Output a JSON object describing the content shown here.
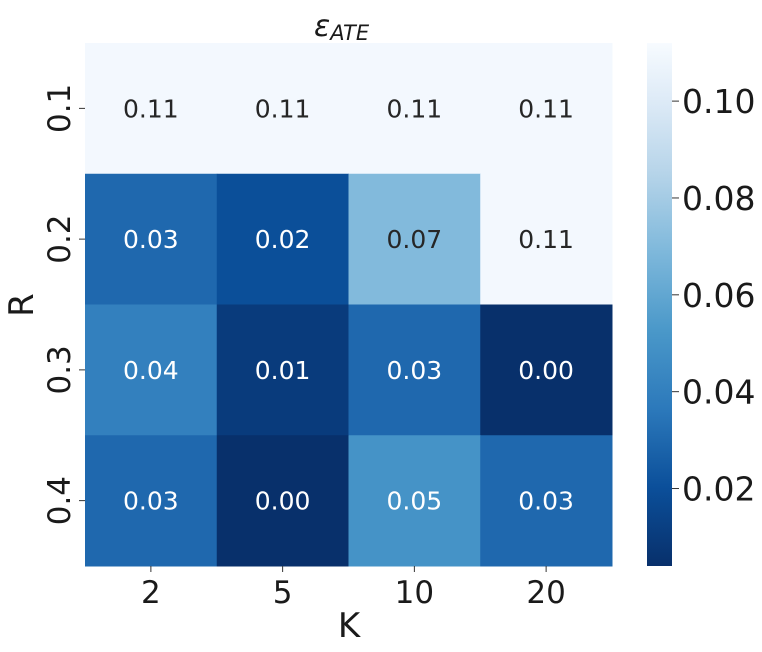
{
  "chart_data": {
    "type": "heatmap",
    "title": "ε",
    "title_subscript": "ATE",
    "xlabel": "K",
    "ylabel": "R",
    "x_categories": [
      "2",
      "5",
      "10",
      "20"
    ],
    "y_categories": [
      "0.1",
      "0.2",
      "0.3",
      "0.4"
    ],
    "values": [
      [
        0.11,
        0.11,
        0.11,
        0.11
      ],
      [
        0.03,
        0.02,
        0.07,
        0.11
      ],
      [
        0.04,
        0.01,
        0.03,
        0.0
      ],
      [
        0.03,
        0.0,
        0.05,
        0.03
      ]
    ],
    "annotations": [
      [
        "0.11",
        "0.11",
        "0.11",
        "0.11"
      ],
      [
        "0.03",
        "0.02",
        "0.07",
        "0.11"
      ],
      [
        "0.04",
        "0.01",
        "0.03",
        "0.00"
      ],
      [
        "0.03",
        "0.00",
        "0.05",
        "0.03"
      ]
    ],
    "colormap": "Blues_r",
    "colorbar": {
      "range": [
        0.004,
        0.112
      ],
      "ticks": [
        0.02,
        0.04,
        0.06,
        0.08,
        0.1
      ],
      "tick_labels": [
        "0.02",
        "0.04",
        "0.06",
        "0.08",
        "0.10"
      ]
    },
    "grid": false
  }
}
